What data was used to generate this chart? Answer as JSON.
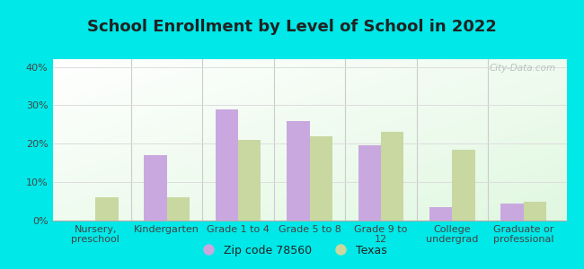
{
  "title": "School Enrollment by Level of School in 2022",
  "categories": [
    "Nursery,\npreschool",
    "Kindergarten",
    "Grade 1 to 4",
    "Grade 5 to 8",
    "Grade 9 to\n12",
    "College\nundergrad",
    "Graduate or\nprofessional"
  ],
  "zip_values": [
    0.0,
    17.0,
    29.0,
    26.0,
    19.5,
    3.5,
    4.5
  ],
  "texas_values": [
    6.0,
    6.0,
    21.0,
    22.0,
    23.0,
    18.5,
    5.0
  ],
  "zip_color": "#c9a8e0",
  "texas_color": "#c8d8a0",
  "background_color": "#00e8e8",
  "ylim": [
    0,
    42
  ],
  "yticks": [
    0,
    10,
    20,
    30,
    40
  ],
  "legend_zip_label": "Zip code 78560",
  "legend_texas_label": "Texas",
  "title_fontsize": 13,
  "tick_fontsize": 8,
  "legend_fontsize": 9,
  "watermark": "City-Data.com",
  "title_color": "#222222",
  "tick_color": "#444444",
  "grid_color": "#dddddd",
  "separator_color": "#cccccc"
}
